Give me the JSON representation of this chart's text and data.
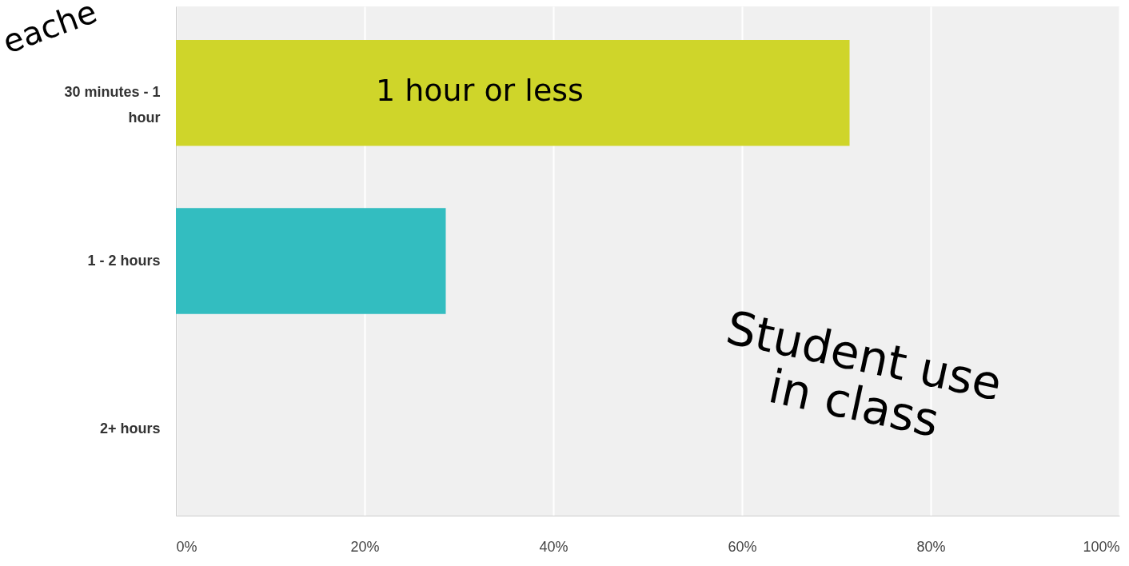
{
  "chart_data": {
    "type": "bar",
    "orientation": "horizontal",
    "categories": [
      "30 minutes - 1 hour",
      "1 - 2 hours",
      "2+ hours"
    ],
    "values": [
      71.4,
      28.6,
      0
    ],
    "colors": [
      "#cfd52a",
      "#33bdc0",
      "#cccccc"
    ],
    "xlim": [
      0,
      100
    ],
    "xticks": [
      {
        "value": 0,
        "label": "0%"
      },
      {
        "value": 20,
        "label": "20%"
      },
      {
        "value": 40,
        "label": "40%"
      },
      {
        "value": 60,
        "label": "60%"
      },
      {
        "value": 80,
        "label": "80%"
      },
      {
        "value": 100,
        "label": "100%"
      }
    ],
    "grid": "x",
    "annotations": [
      "eache",
      "1 hour or less",
      "Student use in class"
    ]
  }
}
